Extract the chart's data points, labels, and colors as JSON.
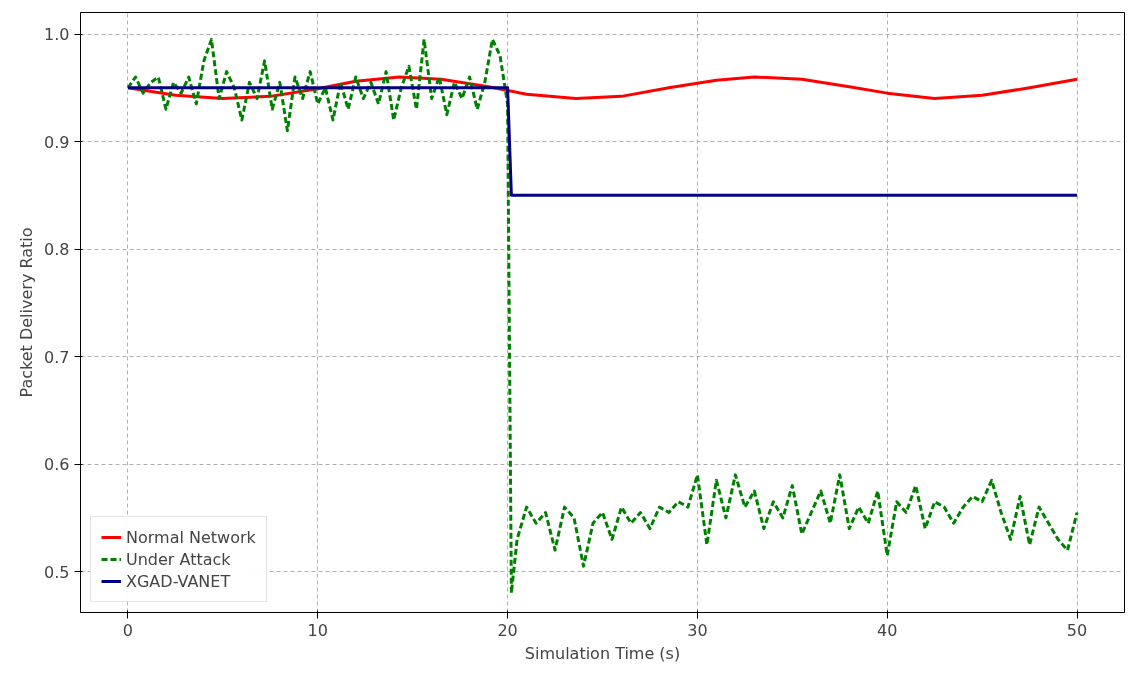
{
  "chart_data": {
    "type": "line",
    "xlabel": "Simulation Time (s)",
    "ylabel": "Packet Delivery Ratio",
    "xlim": [
      -2.5,
      52.5
    ],
    "ylim": [
      0.462,
      1.02
    ],
    "xticks": [
      0,
      10,
      20,
      30,
      40,
      50
    ],
    "yticks": [
      {
        "value": 0.5,
        "label": "0.5"
      },
      {
        "value": 0.6,
        "label": "0.6"
      },
      {
        "value": 0.7,
        "label": "0.7"
      },
      {
        "value": 0.8,
        "label": "0.8"
      },
      {
        "value": 0.9,
        "label": "0.9"
      },
      {
        "value": 1.0,
        "label": "1.0"
      }
    ],
    "grid": true,
    "legend": "bottom left",
    "series": [
      {
        "name": "Normal Network",
        "color": "#ff0000",
        "line_style": "solid",
        "x": [
          0,
          2.5,
          5,
          7.5,
          10,
          12,
          14.3,
          16.5,
          19,
          21,
          23.6,
          26,
          28.5,
          31,
          33,
          35.5,
          38,
          40,
          42.5,
          45,
          47.5,
          50
        ],
        "values": [
          0.95,
          0.943,
          0.94,
          0.942,
          0.949,
          0.956,
          0.96,
          0.958,
          0.951,
          0.944,
          0.94,
          0.942,
          0.95,
          0.957,
          0.96,
          0.958,
          0.951,
          0.945,
          0.94,
          0.943,
          0.95,
          0.958
        ]
      },
      {
        "name": "Under Attack",
        "color": "#008000",
        "line_style": "dashed",
        "x": [
          0,
          0.4,
          0.8,
          1.2,
          1.6,
          2.0,
          2.4,
          2.8,
          3.2,
          3.6,
          4.0,
          4.4,
          4.8,
          5.2,
          5.6,
          6.0,
          6.4,
          6.8,
          7.2,
          7.6,
          8.0,
          8.4,
          8.8,
          9.2,
          9.6,
          10.0,
          10.4,
          10.8,
          11.2,
          11.6,
          12.0,
          12.4,
          12.8,
          13.2,
          13.6,
          14.0,
          14.4,
          14.8,
          15.2,
          15.6,
          16.0,
          16.4,
          16.8,
          17.2,
          17.6,
          18.0,
          18.4,
          18.8,
          19.2,
          19.6,
          20.0,
          20.2,
          20.5,
          21.0,
          21.5,
          22.0,
          22.5,
          23.0,
          23.5,
          24.0,
          24.5,
          25.0,
          25.5,
          26.0,
          26.5,
          27.0,
          27.5,
          28.0,
          28.5,
          29.0,
          29.5,
          30.0,
          30.5,
          31.0,
          31.5,
          32.0,
          32.5,
          33.0,
          33.5,
          34.0,
          34.5,
          35.0,
          35.5,
          36.0,
          36.5,
          37.0,
          37.5,
          38.0,
          38.5,
          39.0,
          39.5,
          40.0,
          40.5,
          41.0,
          41.5,
          42.0,
          42.5,
          43.0,
          43.5,
          44.0,
          44.5,
          45.0,
          45.5,
          46.0,
          46.5,
          47.0,
          47.5,
          48.0,
          48.5,
          49.0,
          49.5,
          50.0
        ],
        "values": [
          0.95,
          0.96,
          0.945,
          0.955,
          0.96,
          0.93,
          0.955,
          0.945,
          0.96,
          0.935,
          0.975,
          0.995,
          0.94,
          0.965,
          0.95,
          0.92,
          0.955,
          0.94,
          0.975,
          0.93,
          0.955,
          0.91,
          0.96,
          0.94,
          0.965,
          0.935,
          0.95,
          0.92,
          0.955,
          0.93,
          0.96,
          0.94,
          0.955,
          0.935,
          0.965,
          0.92,
          0.95,
          0.97,
          0.93,
          0.995,
          0.94,
          0.96,
          0.925,
          0.955,
          0.94,
          0.96,
          0.93,
          0.955,
          0.995,
          0.98,
          0.935,
          0.48,
          0.53,
          0.56,
          0.545,
          0.555,
          0.52,
          0.56,
          0.55,
          0.505,
          0.545,
          0.555,
          0.53,
          0.56,
          0.545,
          0.555,
          0.54,
          0.56,
          0.555,
          0.565,
          0.56,
          0.59,
          0.525,
          0.585,
          0.55,
          0.59,
          0.56,
          0.575,
          0.54,
          0.565,
          0.55,
          0.58,
          0.535,
          0.555,
          0.575,
          0.545,
          0.59,
          0.54,
          0.56,
          0.545,
          0.575,
          0.515,
          0.565,
          0.555,
          0.58,
          0.54,
          0.565,
          0.56,
          0.545,
          0.56,
          0.57,
          0.565,
          0.585,
          0.555,
          0.53,
          0.57,
          0.525,
          0.56,
          0.545,
          0.53,
          0.52,
          0.555
        ]
      },
      {
        "name": "XGAD-VANET",
        "color": "#000080",
        "line_style": "solid",
        "x": [
          0,
          20,
          20.2,
          50
        ],
        "values": [
          0.95,
          0.95,
          0.85,
          0.85
        ]
      }
    ]
  }
}
